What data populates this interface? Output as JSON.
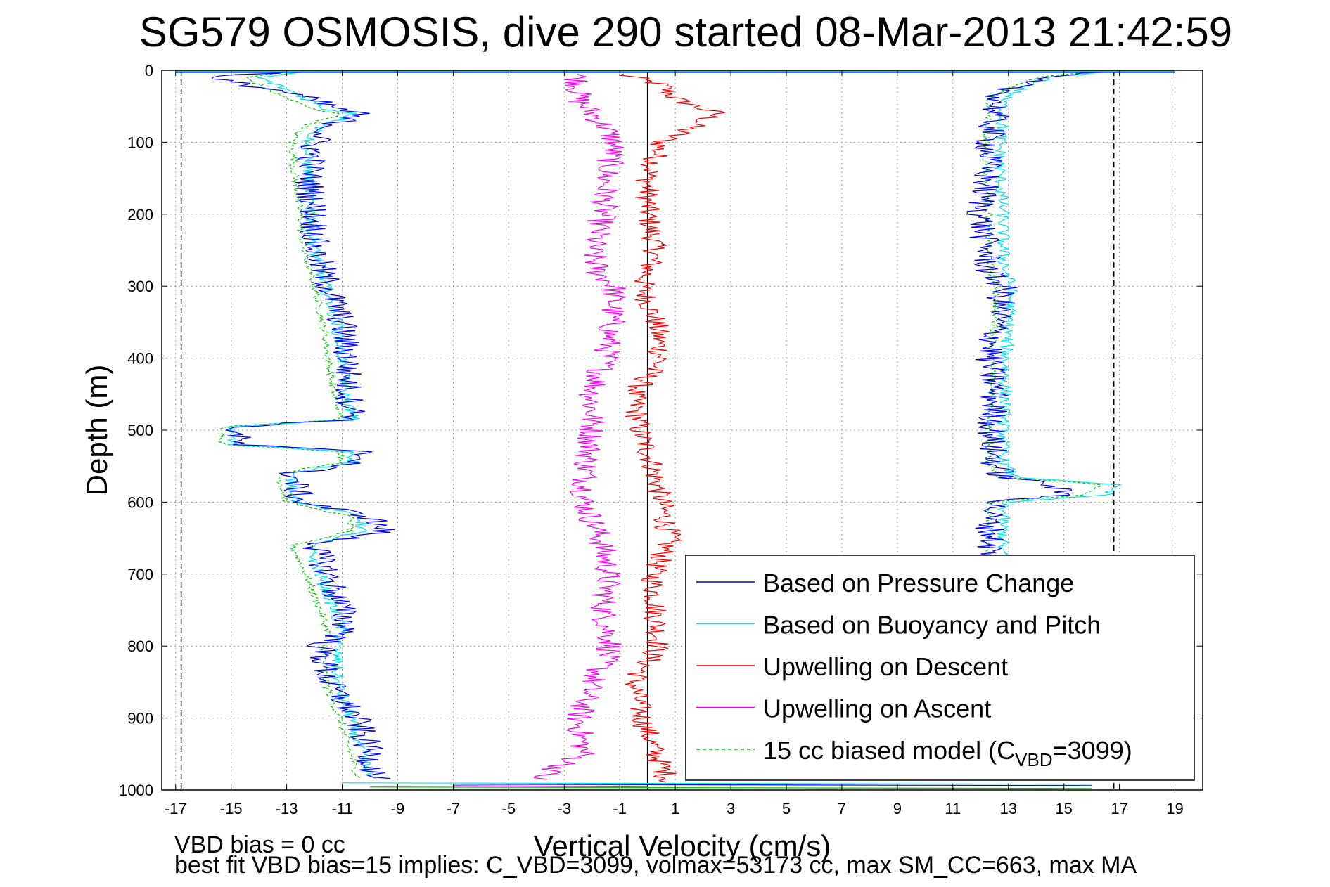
{
  "chart_data": {
    "type": "line",
    "title": "SG579 OSMOSIS, dive 290 started 08-Mar-2013 21:42:59",
    "xlabel": "Vertical Velocity (cm/s)",
    "ylabel": "Depth (m)",
    "xlim": [
      -17.5,
      20
    ],
    "ylim": [
      0,
      1000
    ],
    "y_reversed": true,
    "grid": true,
    "legend_position": "bottom-right",
    "xticks": [
      "-17",
      "-15",
      "-13",
      "-11",
      "-9",
      "-7",
      "-5",
      "-3",
      "-1",
      "1",
      "3",
      "5",
      "7",
      "9",
      "11",
      "13",
      "15",
      "17",
      "19"
    ],
    "yticks": [
      "0",
      "100",
      "200",
      "300",
      "400",
      "500",
      "600",
      "700",
      "800",
      "900",
      "1000"
    ],
    "reference_lines": [
      {
        "x": -16.8,
        "style": "dashed",
        "color": "#000000"
      },
      {
        "x": 16.8,
        "style": "dashed",
        "color": "#000000"
      },
      {
        "x": 0,
        "style": "solid",
        "color": "#000000"
      }
    ],
    "legend": {
      "entries": [
        {
          "label": "Based on Pressure Change",
          "color": "#0000ff",
          "style": "solid"
        },
        {
          "label": "Based on Buoyancy and Pitch",
          "color": "#00e5ee",
          "style": "solid"
        },
        {
          "label": "Upwelling on Descent",
          "color": "#ff0000",
          "style": "solid"
        },
        {
          "label": "Upwelling on Ascent",
          "color": "#ff00ff",
          "style": "solid"
        },
        {
          "label_pre": "15 cc biased model (C",
          "label_sub": "VBD",
          "label_post": "=3099)",
          "color": "#00cc00",
          "style": "dashed"
        }
      ]
    },
    "series": [
      {
        "name": "Based on Pressure Change",
        "color": "#0000ff",
        "noise": 0.55,
        "descent": {
          "depth": [
            0,
            10,
            30,
            55,
            60,
            80,
            100,
            150,
            200,
            250,
            300,
            350,
            400,
            450,
            485,
            495,
            520,
            530,
            545,
            560,
            600,
            620,
            640,
            660,
            700,
            750,
            780,
            800,
            850,
            900,
            950,
            985
          ],
          "velocity": [
            -12,
            -16,
            -13,
            -11,
            -10.5,
            -11.5,
            -12,
            -12.2,
            -12,
            -12,
            -11.5,
            -11,
            -10.8,
            -10.8,
            -10.5,
            -14.8,
            -14.8,
            -10.3,
            -10.3,
            -12.8,
            -12.5,
            -10,
            -9.5,
            -12,
            -11.5,
            -11,
            -10.8,
            -11.8,
            -11.5,
            -10.5,
            -10,
            -9.8
          ]
        },
        "ascent": {
          "depth": [
            985,
            950,
            900,
            850,
            800,
            750,
            700,
            650,
            620,
            600,
            590,
            575,
            565,
            545,
            520,
            500,
            450,
            400,
            350,
            300,
            280,
            250,
            200,
            150,
            100,
            60,
            40,
            25,
            10,
            0
          ],
          "velocity": [
            12.5,
            12.4,
            12.3,
            12.4,
            12.5,
            12.3,
            12.3,
            12.4,
            12.3,
            12.6,
            15,
            14.5,
            12.8,
            12.5,
            12.4,
            12.4,
            12.5,
            12.3,
            12.6,
            12.8,
            12.3,
            12.2,
            12,
            12.2,
            12.3,
            12.5,
            12.6,
            13,
            14,
            16.5
          ]
        }
      },
      {
        "name": "Based on Buoyancy and Pitch",
        "color": "#00e5ee",
        "noise": 0.25,
        "descent": {
          "depth": [
            0,
            10,
            30,
            55,
            60,
            80,
            100,
            150,
            200,
            250,
            300,
            350,
            400,
            450,
            485,
            495,
            520,
            530,
            545,
            560,
            600,
            620,
            640,
            660,
            700,
            750,
            780,
            800,
            850,
            900,
            950,
            985
          ],
          "velocity": [
            -12,
            -14,
            -12.8,
            -11.5,
            -10.5,
            -11.8,
            -12.3,
            -12.2,
            -12.1,
            -12,
            -11.6,
            -11.2,
            -11,
            -10.9,
            -10.6,
            -15,
            -15,
            -10.6,
            -10.6,
            -12.9,
            -12.6,
            -10.3,
            -10.3,
            -12.2,
            -11.8,
            -11.3,
            -11,
            -11.2,
            -11.2,
            -10.7,
            -10.3,
            -10
          ]
        },
        "ascent": {
          "depth": [
            985,
            950,
            900,
            850,
            800,
            750,
            700,
            650,
            620,
            600,
            590,
            575,
            565,
            545,
            520,
            500,
            450,
            400,
            350,
            300,
            280,
            250,
            200,
            150,
            100,
            60,
            40,
            25,
            10,
            0
          ],
          "velocity": [
            12.7,
            12.7,
            12.6,
            12.7,
            12.8,
            12.7,
            12.7,
            12.8,
            12.8,
            12.9,
            16.5,
            16.8,
            13.2,
            12.8,
            12.8,
            12.8,
            12.9,
            12.9,
            13,
            13.1,
            12.9,
            12.8,
            12.8,
            12.7,
            12.7,
            12.8,
            12.8,
            13.5,
            14.5,
            17
          ]
        }
      },
      {
        "name": "Upwelling on Descent",
        "color": "#ff0000",
        "noise": 0.45,
        "depth": [
          5,
          20,
          40,
          60,
          80,
          100,
          150,
          200,
          250,
          300,
          350,
          400,
          450,
          500,
          550,
          600,
          650,
          700,
          750,
          800,
          850,
          900,
          950,
          990
        ],
        "velocity": [
          -1,
          0.5,
          1,
          2.5,
          1.5,
          0.5,
          0,
          0,
          0.3,
          -0.2,
          0.3,
          0.5,
          -0.5,
          -0.3,
          0.2,
          0.5,
          0.8,
          0.2,
          0.3,
          0.4,
          -0.5,
          -0.2,
          0.3,
          0.8
        ]
      },
      {
        "name": "Upwelling on Ascent",
        "color": "#ff00ff",
        "noise": 0.5,
        "depth": [
          5,
          40,
          80,
          100,
          150,
          200,
          250,
          280,
          300,
          350,
          400,
          450,
          500,
          550,
          600,
          650,
          700,
          750,
          800,
          850,
          900,
          950,
          985
        ],
        "velocity": [
          -2.5,
          -2.5,
          -1.5,
          -1.2,
          -1.5,
          -1.6,
          -2,
          -1.8,
          -1.2,
          -1.3,
          -1.5,
          -2,
          -2,
          -2.2,
          -2.3,
          -1.7,
          -1.4,
          -1.6,
          -1.3,
          -2,
          -2.5,
          -2.3,
          -4
        ]
      },
      {
        "name": "15 cc biased model (CVBD=3099)",
        "color": "#00cc00",
        "dashed": true,
        "noise": 0.15,
        "descent": {
          "depth": [
            0,
            10,
            30,
            55,
            60,
            80,
            100,
            150,
            200,
            250,
            300,
            350,
            400,
            450,
            485,
            495,
            520,
            530,
            545,
            560,
            600,
            620,
            640,
            660,
            700,
            750,
            780,
            800,
            850,
            900,
            950,
            985
          ],
          "velocity": [
            -12.5,
            -14.5,
            -13.5,
            -12,
            -11,
            -12.5,
            -12.8,
            -12.7,
            -12.5,
            -12.4,
            -12,
            -11.7,
            -11.5,
            -11.3,
            -11,
            -15.3,
            -15.3,
            -11,
            -11,
            -13.3,
            -13,
            -10.7,
            -10.7,
            -12.8,
            -12.3,
            -11.8,
            -11.5,
            -11.7,
            -11.6,
            -11.1,
            -10.7,
            -10.4
          ]
        },
        "ascent": {
          "depth": [
            985,
            950,
            900,
            850,
            800,
            750,
            700,
            650,
            620,
            600,
            590,
            575,
            565,
            545,
            520,
            500,
            450,
            400,
            350,
            300,
            280,
            250,
            200,
            150,
            100,
            60,
            40,
            25,
            10,
            0
          ],
          "velocity": [
            12.2,
            12.2,
            12.1,
            12.2,
            12.3,
            12.2,
            12.2,
            12.3,
            12.3,
            12.4,
            15.8,
            16.3,
            12.7,
            12.3,
            12.3,
            12.3,
            12.4,
            12.4,
            12.5,
            12.6,
            12.4,
            12.3,
            12.3,
            12.2,
            12.2,
            12.3,
            12.3,
            13,
            14,
            16.5
          ]
        }
      }
    ],
    "surface_trace": {
      "depth": 0,
      "x_from": -17,
      "x_to": 19
    }
  },
  "footer": {
    "vbd_bias": "VBD bias = 0 cc",
    "best_fit": "best fit VBD bias=15 implies: C_VBD=3099, volmax=53173 cc, max SM_CC=663, max MA"
  }
}
